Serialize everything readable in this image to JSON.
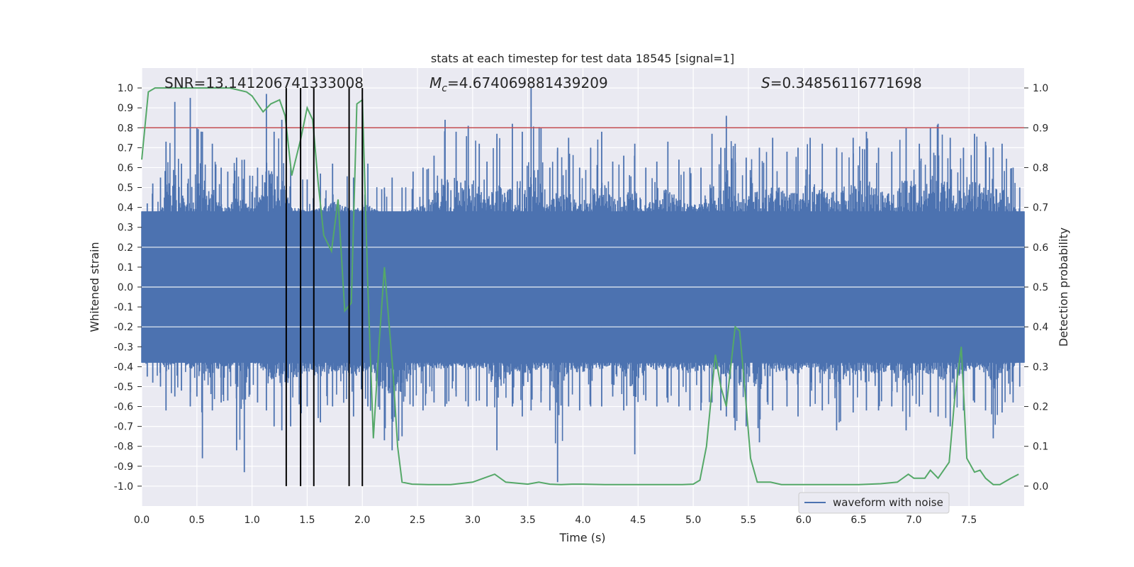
{
  "chart_data": {
    "type": "line",
    "title": "stats at each timestep for test data 18545 [signal=1]",
    "xlabel": "Time (s)",
    "ylabel": "Whitened strain",
    "y2label": "Detection probability",
    "xlim": [
      0,
      8
    ],
    "ylim": [
      -1.1,
      1.1
    ],
    "y2lim": [
      -0.05,
      1.05
    ],
    "xticks": [
      "0.0",
      "0.5",
      "1.0",
      "1.5",
      "2.0",
      "2.5",
      "3.0",
      "3.5",
      "4.0",
      "4.5",
      "5.0",
      "5.5",
      "6.0",
      "6.5",
      "7.0",
      "7.5"
    ],
    "yticks": [
      "1.0",
      "0.9",
      "0.8",
      "0.7",
      "0.6",
      "0.5",
      "0.4",
      "0.3",
      "0.2",
      "0.1",
      "0.0",
      "-0.1",
      "-0.2",
      "-0.3",
      "-0.4",
      "-0.5",
      "-0.6",
      "-0.7",
      "-0.8",
      "-0.9",
      "-1.0"
    ],
    "y2ticks": [
      "1.0",
      "0.9",
      "0.8",
      "0.7",
      "0.6",
      "0.5",
      "0.4",
      "0.3",
      "0.2",
      "0.1",
      "0.0"
    ],
    "grid": true,
    "annotations": {
      "snr_prefix": "SNR=",
      "snr_value": "13.141206741333008",
      "mc_symbol": "M",
      "mc_subscript": "c",
      "mc_value": "=4.674069881439209",
      "s_symbol": "S",
      "s_value": "=0.34856116771698"
    },
    "threshold": {
      "value": 0.9,
      "axis": "right",
      "color": "#c44e52"
    },
    "vertical_lines": [
      1.31,
      1.44,
      1.56,
      1.88,
      2.0
    ],
    "waveform": {
      "name": "waveform with noise",
      "color": "#4c72b0",
      "core_amplitude": 0.38,
      "peaks": [
        {
          "t": 0.05,
          "hi": 0.42,
          "lo": -0.45
        },
        {
          "t": 0.1,
          "hi": 0.52,
          "lo": -0.48
        },
        {
          "t": 0.17,
          "hi": 0.55,
          "lo": -0.5
        },
        {
          "t": 0.22,
          "hi": 0.73,
          "lo": -0.62
        },
        {
          "t": 0.3,
          "hi": 0.93,
          "lo": -0.55
        },
        {
          "t": 0.36,
          "hi": 0.62,
          "lo": -0.52
        },
        {
          "t": 0.44,
          "hi": 0.95,
          "lo": -0.6
        },
        {
          "t": 0.5,
          "hi": 0.8,
          "lo": -0.55
        },
        {
          "t": 0.55,
          "hi": 0.78,
          "lo": -0.86
        },
        {
          "t": 0.64,
          "hi": 0.72,
          "lo": -0.62
        },
        {
          "t": 0.72,
          "hi": 0.6,
          "lo": -0.58
        },
        {
          "t": 0.78,
          "hi": 0.58,
          "lo": -0.57
        },
        {
          "t": 0.86,
          "hi": 0.65,
          "lo": -0.82
        },
        {
          "t": 0.93,
          "hi": 0.64,
          "lo": -0.93
        },
        {
          "t": 0.98,
          "hi": 0.56,
          "lo": -0.54
        },
        {
          "t": 1.05,
          "hi": 0.6,
          "lo": -0.58
        },
        {
          "t": 1.13,
          "hi": 0.97,
          "lo": -0.62
        },
        {
          "t": 1.2,
          "hi": 0.78,
          "lo": -0.7
        },
        {
          "t": 1.27,
          "hi": 0.84,
          "lo": -0.72
        },
        {
          "t": 1.35,
          "hi": 0.6,
          "lo": -0.7
        },
        {
          "t": 1.5,
          "hi": 0.54,
          "lo": -0.6
        },
        {
          "t": 1.62,
          "hi": 0.57,
          "lo": -0.68
        },
        {
          "t": 1.73,
          "hi": 0.62,
          "lo": -0.6
        },
        {
          "t": 1.92,
          "hi": 0.55,
          "lo": -0.65
        },
        {
          "t": 2.05,
          "hi": 0.62,
          "lo": -0.6
        },
        {
          "t": 2.2,
          "hi": 0.5,
          "lo": -0.77
        },
        {
          "t": 2.27,
          "hi": 0.55,
          "lo": -0.82
        },
        {
          "t": 2.36,
          "hi": 0.5,
          "lo": -0.75
        },
        {
          "t": 2.46,
          "hi": 0.58,
          "lo": -0.6
        },
        {
          "t": 2.55,
          "hi": 0.6,
          "lo": -0.62
        },
        {
          "t": 2.65,
          "hi": 0.66,
          "lo": -0.58
        },
        {
          "t": 2.75,
          "hi": 0.84,
          "lo": -0.6
        },
        {
          "t": 2.85,
          "hi": 0.78,
          "lo": -0.55
        },
        {
          "t": 2.96,
          "hi": 0.81,
          "lo": -0.6
        },
        {
          "t": 3.06,
          "hi": 0.72,
          "lo": -0.57
        },
        {
          "t": 3.13,
          "hi": 0.63,
          "lo": -0.6
        },
        {
          "t": 3.22,
          "hi": 0.77,
          "lo": -0.82
        },
        {
          "t": 3.36,
          "hi": 0.82,
          "lo": -0.6
        },
        {
          "t": 3.45,
          "hi": 0.78,
          "lo": -0.65
        },
        {
          "t": 3.53,
          "hi": 1.0,
          "lo": -0.62
        },
        {
          "t": 3.62,
          "hi": 0.8,
          "lo": -0.58
        },
        {
          "t": 3.7,
          "hi": 0.6,
          "lo": -0.62
        },
        {
          "t": 3.77,
          "hi": 0.7,
          "lo": -0.98
        },
        {
          "t": 3.87,
          "hi": 0.75,
          "lo": -0.6
        },
        {
          "t": 3.97,
          "hi": 0.6,
          "lo": -0.62
        },
        {
          "t": 4.07,
          "hi": 0.7,
          "lo": -0.6
        },
        {
          "t": 4.17,
          "hi": 0.78,
          "lo": -0.6
        },
        {
          "t": 4.27,
          "hi": 0.63,
          "lo": -0.55
        },
        {
          "t": 4.37,
          "hi": 0.66,
          "lo": -0.62
        },
        {
          "t": 4.47,
          "hi": 0.72,
          "lo": -0.84
        },
        {
          "t": 4.57,
          "hi": 0.6,
          "lo": -0.57
        },
        {
          "t": 4.67,
          "hi": 0.63,
          "lo": -0.6
        },
        {
          "t": 4.77,
          "hi": 0.73,
          "lo": -0.58
        },
        {
          "t": 4.87,
          "hi": 0.64,
          "lo": -0.6
        },
        {
          "t": 4.97,
          "hi": 0.6,
          "lo": -0.62
        },
        {
          "t": 5.07,
          "hi": 0.6,
          "lo": -0.62
        },
        {
          "t": 5.17,
          "hi": 0.77,
          "lo": -0.58
        },
        {
          "t": 5.25,
          "hi": 0.7,
          "lo": -0.62
        },
        {
          "t": 5.3,
          "hi": 0.86,
          "lo": -0.65
        },
        {
          "t": 5.38,
          "hi": 0.72,
          "lo": -0.72
        },
        {
          "t": 5.48,
          "hi": 0.65,
          "lo": -0.7
        },
        {
          "t": 5.6,
          "hi": 0.7,
          "lo": -0.78
        },
        {
          "t": 5.72,
          "hi": 0.75,
          "lo": -0.62
        },
        {
          "t": 5.85,
          "hi": 0.68,
          "lo": -0.6
        },
        {
          "t": 5.95,
          "hi": 0.7,
          "lo": -0.65
        },
        {
          "t": 6.06,
          "hi": 0.75,
          "lo": -0.6
        },
        {
          "t": 6.17,
          "hi": 0.72,
          "lo": -0.62
        },
        {
          "t": 6.3,
          "hi": 0.7,
          "lo": -0.72
        },
        {
          "t": 6.45,
          "hi": 0.75,
          "lo": -0.63
        },
        {
          "t": 6.57,
          "hi": 0.78,
          "lo": -0.62
        },
        {
          "t": 6.68,
          "hi": 0.7,
          "lo": -0.62
        },
        {
          "t": 6.8,
          "hi": 0.68,
          "lo": -0.6
        },
        {
          "t": 6.93,
          "hi": 0.8,
          "lo": -0.72
        },
        {
          "t": 7.05,
          "hi": 0.72,
          "lo": -0.6
        },
        {
          "t": 7.15,
          "hi": 0.8,
          "lo": -0.63
        },
        {
          "t": 7.22,
          "hi": 0.82,
          "lo": -0.65
        },
        {
          "t": 7.33,
          "hi": 0.75,
          "lo": -0.7
        },
        {
          "t": 7.45,
          "hi": 0.7,
          "lo": -0.62
        },
        {
          "t": 7.55,
          "hi": 0.77,
          "lo": -0.58
        },
        {
          "t": 7.65,
          "hi": 0.73,
          "lo": -0.62
        },
        {
          "t": 7.72,
          "hi": 0.7,
          "lo": -0.76
        },
        {
          "t": 7.8,
          "hi": 0.72,
          "lo": -0.63
        },
        {
          "t": 7.9,
          "hi": 0.6,
          "lo": -0.58
        },
        {
          "t": 7.96,
          "hi": 0.5,
          "lo": -0.5
        }
      ]
    },
    "probability": {
      "name": "detection probability",
      "color": "#55a868",
      "x": [
        0.0,
        0.06,
        0.12,
        0.2,
        0.4,
        0.6,
        0.8,
        0.95,
        1.0,
        1.05,
        1.1,
        1.17,
        1.25,
        1.3,
        1.36,
        1.44,
        1.5,
        1.55,
        1.6,
        1.65,
        1.72,
        1.78,
        1.84,
        1.9,
        1.95,
        2.0,
        2.05,
        2.1,
        2.15,
        2.2,
        2.28,
        2.32,
        2.36,
        2.45,
        2.6,
        2.8,
        3.0,
        3.1,
        3.2,
        3.3,
        3.5,
        3.6,
        3.7,
        3.8,
        3.9,
        4.0,
        4.2,
        4.5,
        4.9,
        5.0,
        5.06,
        5.12,
        5.2,
        5.25,
        5.3,
        5.38,
        5.42,
        5.46,
        5.52,
        5.58,
        5.7,
        5.8,
        6.0,
        6.5,
        6.7,
        6.85,
        6.95,
        7.0,
        7.1,
        7.15,
        7.22,
        7.27,
        7.32,
        7.37,
        7.43,
        7.48,
        7.55,
        7.6,
        7.65,
        7.72,
        7.78,
        7.88,
        7.95
      ],
      "y": [
        0.82,
        0.99,
        1.0,
        1.0,
        1.0,
        1.0,
        1.0,
        0.99,
        0.98,
        0.96,
        0.94,
        0.96,
        0.97,
        0.93,
        0.78,
        0.87,
        0.95,
        0.92,
        0.76,
        0.63,
        0.59,
        0.72,
        0.44,
        0.46,
        0.96,
        0.97,
        0.5,
        0.12,
        0.35,
        0.55,
        0.28,
        0.1,
        0.01,
        0.005,
        0.004,
        0.004,
        0.01,
        0.02,
        0.03,
        0.01,
        0.005,
        0.01,
        0.005,
        0.004,
        0.005,
        0.005,
        0.004,
        0.004,
        0.004,
        0.005,
        0.015,
        0.1,
        0.33,
        0.25,
        0.2,
        0.4,
        0.39,
        0.27,
        0.07,
        0.01,
        0.01,
        0.004,
        0.004,
        0.004,
        0.006,
        0.01,
        0.03,
        0.02,
        0.02,
        0.04,
        0.02,
        0.04,
        0.06,
        0.22,
        0.35,
        0.07,
        0.035,
        0.04,
        0.02,
        0.004,
        0.004,
        0.02,
        0.03
      ]
    }
  }
}
